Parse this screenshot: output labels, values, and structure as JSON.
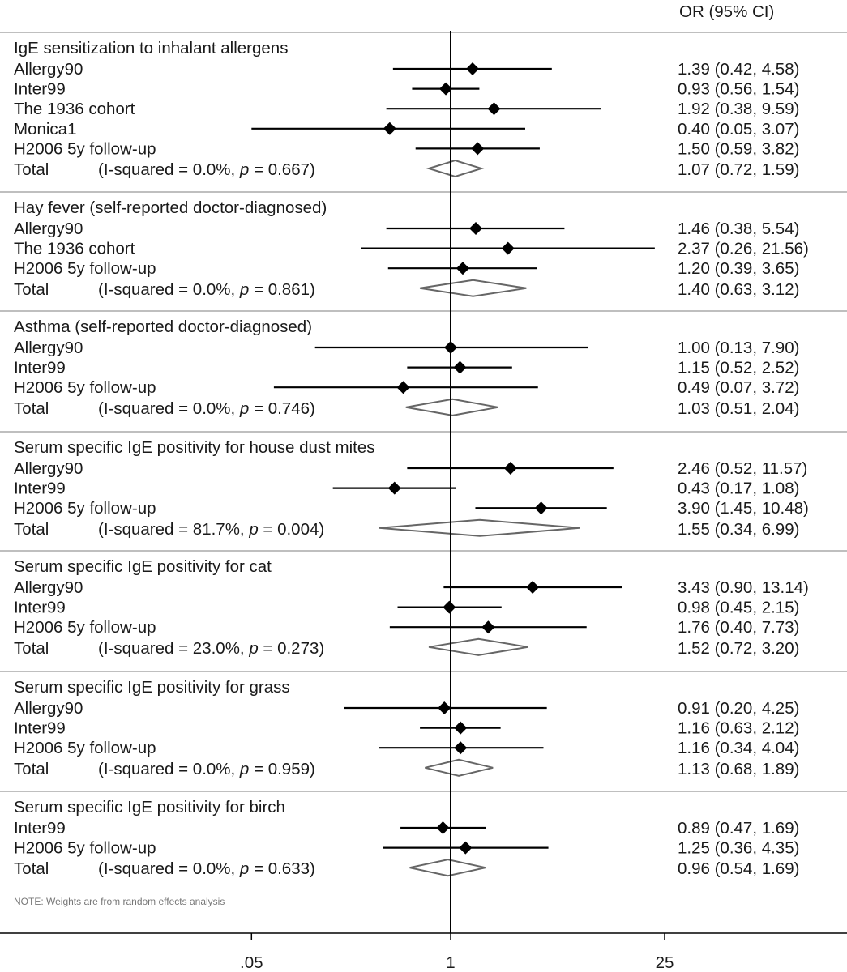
{
  "chart_data": {
    "type": "forest",
    "xscale": "log",
    "xticks": [
      {
        "value": 0.05,
        "label": ".05"
      },
      {
        "value": 1,
        "label": "1"
      },
      {
        "value": 25,
        "label": "25"
      }
    ],
    "reference_line": 1,
    "column_header": "OR (95% CI)",
    "total_label": "Total",
    "note": "NOTE: Weights are from random effects analysis",
    "colors": {
      "study_marker": "#000000",
      "pooled_diamond": "#666666",
      "separator": "#aaaaaa"
    },
    "groups": [
      {
        "title": "IgE sensitization to inhalant allergens",
        "studies": [
          {
            "name": "Allergy90",
            "or": 1.39,
            "lo": 0.42,
            "hi": 4.58,
            "ci_text": "1.39 (0.42, 4.58)"
          },
          {
            "name": "Inter99",
            "or": 0.93,
            "lo": 0.56,
            "hi": 1.54,
            "ci_text": "0.93 (0.56, 1.54)"
          },
          {
            "name": "The 1936 cohort",
            "or": 1.92,
            "lo": 0.38,
            "hi": 9.59,
            "ci_text": "1.92 (0.38, 9.59)"
          },
          {
            "name": "Monica1",
            "or": 0.4,
            "lo": 0.05,
            "hi": 3.07,
            "ci_text": "0.40 (0.05, 3.07)"
          },
          {
            "name": "H2006 5y follow-up",
            "or": 1.5,
            "lo": 0.59,
            "hi": 3.82,
            "ci_text": "1.50 (0.59, 3.82)"
          }
        ],
        "total": {
          "het_prefix": "(I-squared = 0.0%, ",
          "p_label": "p",
          "het_suffix": " = 0.667)",
          "or": 1.07,
          "lo": 0.72,
          "hi": 1.59,
          "ci_text": "1.07 (0.72, 1.59)"
        }
      },
      {
        "title": "Hay fever (self-reported doctor-diagnosed)",
        "studies": [
          {
            "name": "Allergy90",
            "or": 1.46,
            "lo": 0.38,
            "hi": 5.54,
            "ci_text": "1.46 (0.38, 5.54)"
          },
          {
            "name": "The 1936 cohort",
            "or": 2.37,
            "lo": 0.26,
            "hi": 21.56,
            "ci_text": "2.37 (0.26, 21.56)"
          },
          {
            "name": "H2006 5y follow-up",
            "or": 1.2,
            "lo": 0.39,
            "hi": 3.65,
            "ci_text": "1.20 (0.39, 3.65)"
          }
        ],
        "total": {
          "het_prefix": "(I-squared = 0.0%, ",
          "p_label": "p",
          "het_suffix": " = 0.861)",
          "or": 1.4,
          "lo": 0.63,
          "hi": 3.12,
          "ci_text": "1.40 (0.63, 3.12)"
        }
      },
      {
        "title": "Asthma (self-reported doctor-diagnosed)",
        "studies": [
          {
            "name": "Allergy90",
            "or": 1.0,
            "lo": 0.13,
            "hi": 7.9,
            "ci_text": "1.00 (0.13, 7.90)"
          },
          {
            "name": "Inter99",
            "or": 1.15,
            "lo": 0.52,
            "hi": 2.52,
            "ci_text": "1.15 (0.52, 2.52)"
          },
          {
            "name": "H2006 5y follow-up",
            "or": 0.49,
            "lo": 0.07,
            "hi": 3.72,
            "ci_text": "0.49 (0.07, 3.72)"
          }
        ],
        "total": {
          "het_prefix": "(I-squared = 0.0%, ",
          "p_label": "p",
          "het_suffix": " = 0.746)",
          "or": 1.03,
          "lo": 0.51,
          "hi": 2.04,
          "ci_text": "1.03 (0.51, 2.04)"
        }
      },
      {
        "title": "Serum specific IgE positivity for house dust mites",
        "studies": [
          {
            "name": "Allergy90",
            "or": 2.46,
            "lo": 0.52,
            "hi": 11.57,
            "ci_text": "2.46 (0.52, 11.57)"
          },
          {
            "name": "Inter99",
            "or": 0.43,
            "lo": 0.17,
            "hi": 1.08,
            "ci_text": "0.43 (0.17, 1.08)"
          },
          {
            "name": "H2006 5y follow-up",
            "or": 3.9,
            "lo": 1.45,
            "hi": 10.48,
            "ci_text": "3.90 (1.45, 10.48)"
          }
        ],
        "total": {
          "het_prefix": "(I-squared = 81.7%, ",
          "p_label": "p",
          "het_suffix": " = 0.004)",
          "or": 1.55,
          "lo": 0.34,
          "hi": 6.99,
          "ci_text": "1.55 (0.34, 6.99)"
        }
      },
      {
        "title": "Serum specific IgE positivity for cat",
        "studies": [
          {
            "name": "Allergy90",
            "or": 3.43,
            "lo": 0.9,
            "hi": 13.14,
            "ci_text": "3.43 (0.90, 13.14)"
          },
          {
            "name": "Inter99",
            "or": 0.98,
            "lo": 0.45,
            "hi": 2.15,
            "ci_text": "0.98 (0.45, 2.15)"
          },
          {
            "name": "H2006 5y follow-up",
            "or": 1.76,
            "lo": 0.4,
            "hi": 7.73,
            "ci_text": "1.76 (0.40, 7.73)"
          }
        ],
        "total": {
          "het_prefix": "(I-squared = 23.0%, ",
          "p_label": "p",
          "het_suffix": " = 0.273)",
          "or": 1.52,
          "lo": 0.72,
          "hi": 3.2,
          "ci_text": "1.52 (0.72, 3.20)"
        }
      },
      {
        "title": "Serum specific IgE positivity for grass",
        "studies": [
          {
            "name": "Allergy90",
            "or": 0.91,
            "lo": 0.2,
            "hi": 4.25,
            "ci_text": "0.91 (0.20, 4.25)"
          },
          {
            "name": "Inter99",
            "or": 1.16,
            "lo": 0.63,
            "hi": 2.12,
            "ci_text": "1.16 (0.63, 2.12)"
          },
          {
            "name": "H2006 5y follow-up",
            "or": 1.16,
            "lo": 0.34,
            "hi": 4.04,
            "ci_text": "1.16 (0.34, 4.04)"
          }
        ],
        "total": {
          "het_prefix": "(I-squared = 0.0%, ",
          "p_label": "p",
          "het_suffix": " = 0.959)",
          "or": 1.13,
          "lo": 0.68,
          "hi": 1.89,
          "ci_text": "1.13 (0.68, 1.89)"
        }
      },
      {
        "title": "Serum specific IgE positivity for birch",
        "studies": [
          {
            "name": "Inter99",
            "or": 0.89,
            "lo": 0.47,
            "hi": 1.69,
            "ci_text": "0.89 (0.47, 1.69)"
          },
          {
            "name": "H2006 5y follow-up",
            "or": 1.25,
            "lo": 0.36,
            "hi": 4.35,
            "ci_text": "1.25 (0.36, 4.35)"
          }
        ],
        "total": {
          "het_prefix": "(I-squared = 0.0%, ",
          "p_label": "p",
          "het_suffix": " = 0.633)",
          "or": 0.96,
          "lo": 0.54,
          "hi": 1.69,
          "ci_text": "0.96 (0.54, 1.69)"
        }
      }
    ]
  }
}
